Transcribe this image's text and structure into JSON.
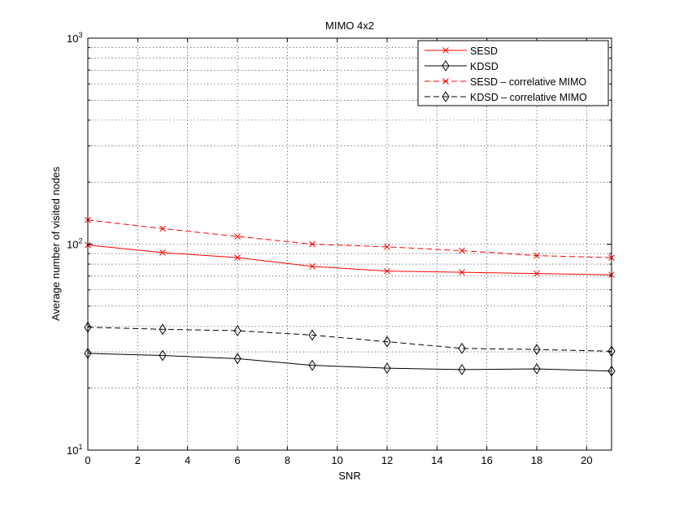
{
  "chart_data": {
    "type": "line",
    "title": "MIMO 4x2",
    "xlabel": "SNR",
    "ylabel": "Average number of visited nodes",
    "x": [
      0,
      3,
      6,
      9,
      12,
      15,
      18,
      21
    ],
    "xlim": [
      0,
      21
    ],
    "ylim": [
      10,
      1000
    ],
    "yscale": "log",
    "grid": true,
    "legend_position": "top-right",
    "x_ticks": [
      0,
      2,
      4,
      6,
      8,
      10,
      12,
      14,
      16,
      18,
      20
    ],
    "x_tick_labels": [
      "0",
      "2",
      "4",
      "6",
      "8",
      "10",
      "12",
      "14",
      "16",
      "18",
      "20"
    ],
    "y_ticks": [
      10,
      100,
      1000
    ],
    "y_tick_labels": [
      {
        "base": "10",
        "exp": "1"
      },
      {
        "base": "10",
        "exp": "2"
      },
      {
        "base": "10",
        "exp": "3"
      }
    ],
    "series": [
      {
        "name": "SESD",
        "color": "#ff0000",
        "dashed": false,
        "marker": "x",
        "values": [
          99,
          91,
          86,
          78,
          74,
          73,
          72,
          71
        ]
      },
      {
        "name": "KDSD",
        "color": "#000000",
        "dashed": false,
        "marker": "diamond",
        "values": [
          29.5,
          28.8,
          27.8,
          25.8,
          25.0,
          24.6,
          24.8,
          24.2
        ]
      },
      {
        "name": "SESD – correlative MIMO",
        "color": "#ff0000",
        "dashed": true,
        "marker": "x",
        "values": [
          131,
          119,
          109,
          100,
          97,
          93,
          88,
          86
        ]
      },
      {
        "name": "KDSD – correlative MIMO",
        "color": "#000000",
        "dashed": true,
        "marker": "diamond",
        "values": [
          39.5,
          38.6,
          38.0,
          36.2,
          33.6,
          31.2,
          30.8,
          30.2
        ]
      }
    ]
  }
}
